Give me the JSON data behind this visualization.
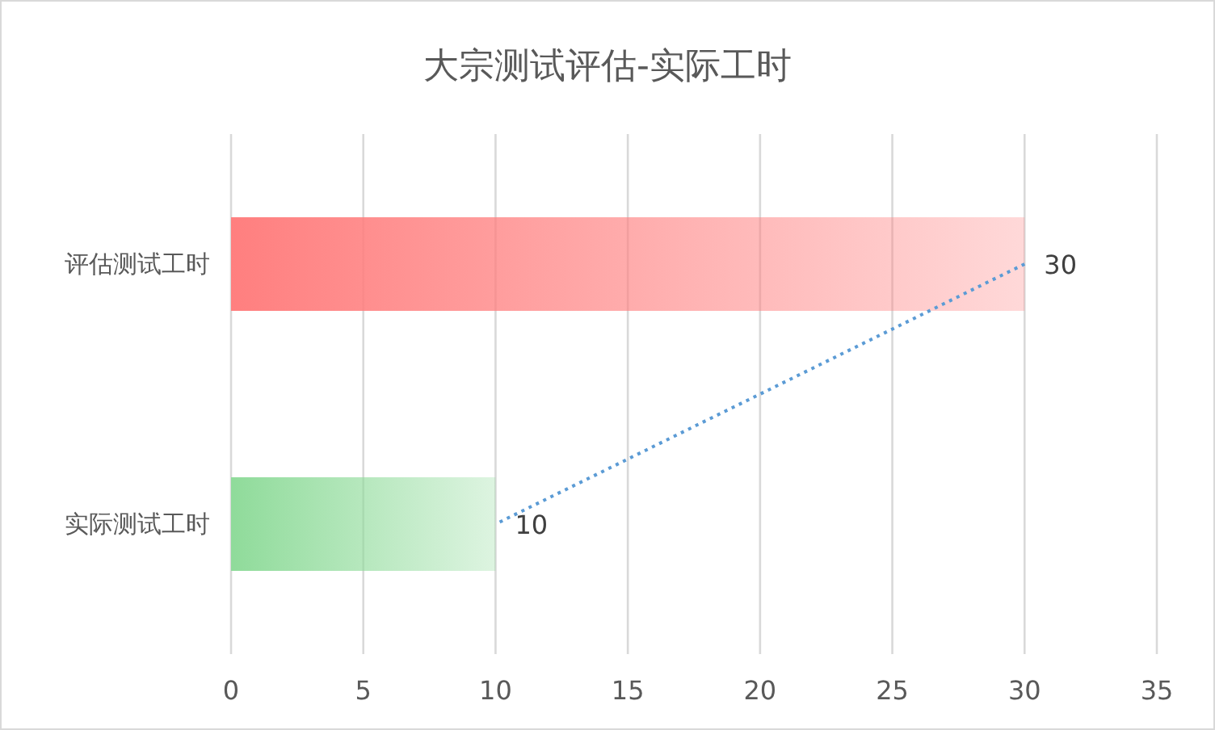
{
  "chart_data": {
    "type": "bar",
    "orientation": "horizontal",
    "title": "大宗测试评估-实际工时",
    "categories": [
      "评估测试工时",
      "实际测试工时"
    ],
    "series": [
      {
        "values": [
          30,
          10
        ],
        "colors": [
          "#ff7f7f",
          "#8fdb9a"
        ]
      },
      {
        "type": "line",
        "values": [
          30,
          10
        ],
        "value_labels": [
          "30",
          "10"
        ],
        "color": "#5b9bd5",
        "line_style": "dotted"
      }
    ],
    "xlim": [
      0,
      35
    ],
    "xticks": [
      0,
      5,
      10,
      15,
      20,
      25,
      30,
      35
    ],
    "grid": "x"
  }
}
